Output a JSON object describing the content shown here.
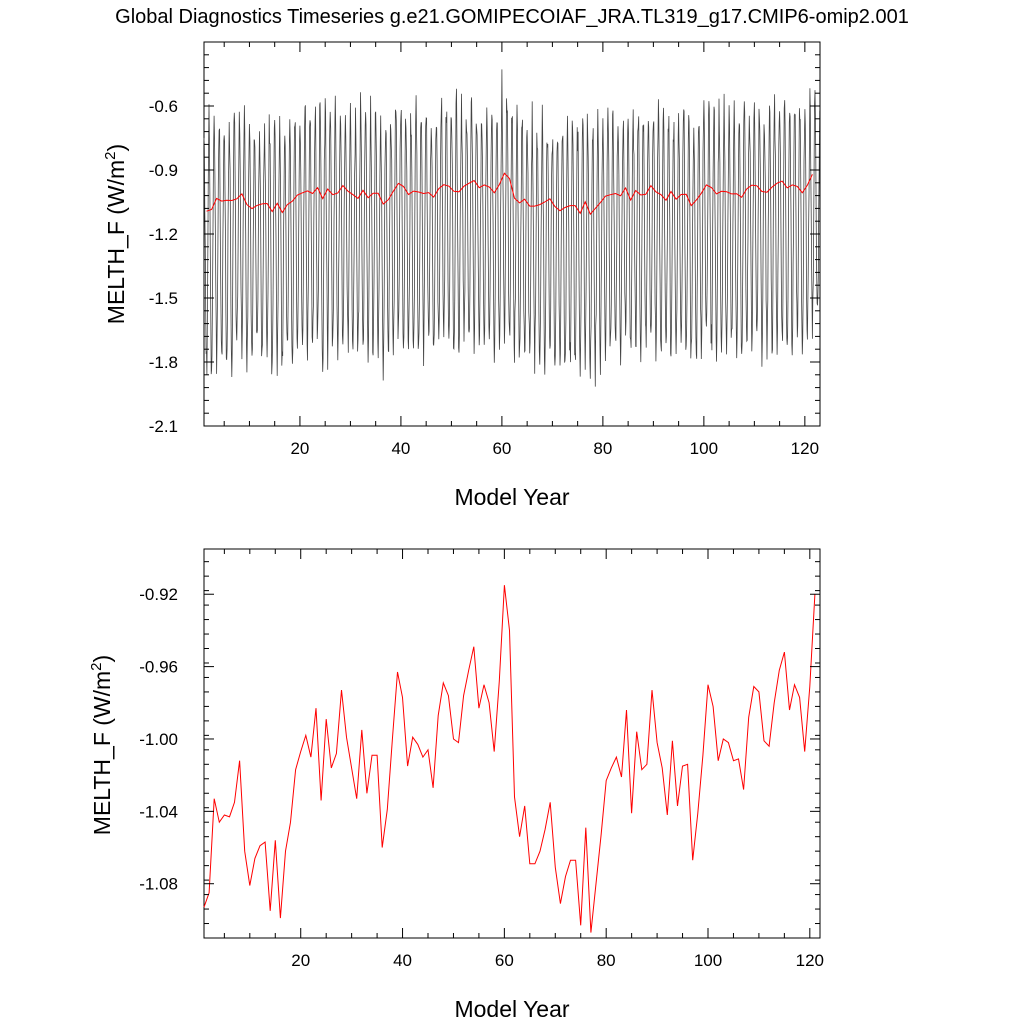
{
  "page": {
    "title": "Global Diagnostics Timeseries g.e21.GOMIPECOIAF_JRA.TL319_g17.CMIP6-omip2.001"
  },
  "colors": {
    "monthly_series": "#444444",
    "annual_series": "#ff0000",
    "axes": "#000000"
  },
  "chart_data": [
    {
      "type": "line",
      "xlabel": "Model Year",
      "ylabel_main": "MELTH_F (W/m",
      "ylabel_sup": "2",
      "ylabel_close": ")",
      "xlim": [
        1,
        123
      ],
      "ylim": [
        -2.1,
        -0.3
      ],
      "xticks": [
        20,
        40,
        60,
        80,
        100,
        120
      ],
      "yticks": [
        -2.1,
        -1.8,
        -1.5,
        -1.2,
        -0.9,
        -0.6
      ],
      "ytick_labels": [
        "-2.1",
        "-1.8",
        "-1.5",
        "-1.2",
        "-0.9",
        "-0.6"
      ],
      "grid": false,
      "series_monthly_envelope": {
        "x_start": 1,
        "seasonal_max_typical": -0.65,
        "seasonal_min_typical": -1.75,
        "overall_max": -0.38,
        "overall_min": -2.04
      }
    },
    {
      "type": "line",
      "xlabel": "Model Year",
      "ylabel_main": "MELTH_F (W/m",
      "ylabel_sup": "2",
      "ylabel_close": ")",
      "xlim": [
        1,
        122
      ],
      "ylim": [
        -1.11,
        -0.895
      ],
      "xticks": [
        20,
        40,
        60,
        80,
        100,
        120
      ],
      "yticks": [
        -1.08,
        -1.04,
        -1.0,
        -0.96,
        -0.92
      ],
      "ytick_labels": [
        "-1.08",
        "-1.04",
        "-1.00",
        "-0.96",
        "-0.92"
      ],
      "grid": false,
      "annual_series": {
        "x_start": 1,
        "values": [
          -1.093,
          -1.085,
          -1.033,
          -1.046,
          -1.042,
          -1.043,
          -1.035,
          -1.012,
          -1.062,
          -1.081,
          -1.066,
          -1.059,
          -1.057,
          -1.095,
          -1.056,
          -1.099,
          -1.062,
          -1.046,
          -1.017,
          -1.007,
          -0.998,
          -1.01,
          -0.983,
          -1.034,
          -0.989,
          -1.016,
          -1.008,
          -0.973,
          -0.999,
          -1.016,
          -1.033,
          -0.995,
          -1.03,
          -1.009,
          -1.009,
          -1.06,
          -1.039,
          -1.0,
          -0.963,
          -0.977,
          -1.015,
          -0.999,
          -1.003,
          -1.01,
          -1.006,
          -1.027,
          -0.987,
          -0.969,
          -0.976,
          -1.0,
          -1.002,
          -0.976,
          -0.962,
          -0.949,
          -0.983,
          -0.97,
          -0.98,
          -1.007,
          -0.968,
          -0.915,
          -0.94,
          -1.032,
          -1.054,
          -1.037,
          -1.069,
          -1.069,
          -1.062,
          -1.05,
          -1.035,
          -1.071,
          -1.091,
          -1.076,
          -1.067,
          -1.067,
          -1.103,
          -1.049,
          -1.107,
          -1.08,
          -1.053,
          -1.023,
          -1.016,
          -1.01,
          -1.021,
          -0.984,
          -1.041,
          -0.996,
          -1.017,
          -1.014,
          -0.973,
          -1.002,
          -1.016,
          -1.042,
          -1.001,
          -1.037,
          -1.015,
          -1.014,
          -1.067,
          -1.041,
          -1.009,
          -0.97,
          -0.982,
          -1.012,
          -1.0,
          -1.002,
          -1.012,
          -1.011,
          -1.028,
          -0.988,
          -0.971,
          -0.974,
          -1.001,
          -1.004,
          -0.98,
          -0.962,
          -0.952,
          -0.984,
          -0.97,
          -0.977,
          -1.007,
          -0.971,
          -0.92
        ]
      }
    }
  ]
}
